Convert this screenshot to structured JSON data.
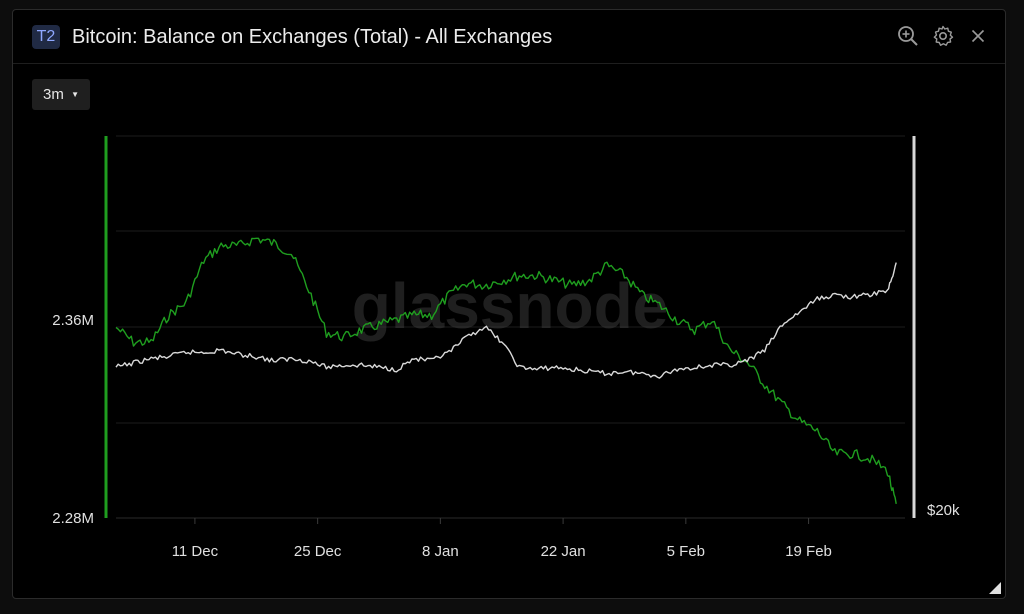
{
  "panel": {
    "badge": "T2",
    "title": "Bitcoin: Balance on Exchanges (Total) - All Exchanges",
    "timeframe": "3m",
    "watermark": "glassnode",
    "icons": [
      "zoom-in-icon",
      "gear-icon",
      "close-icon"
    ]
  },
  "chart_data": {
    "type": "line",
    "title": "Bitcoin: Balance on Exchanges (Total) - All Exchanges",
    "x_ticks": [
      "11 Dec",
      "25 Dec",
      "8 Jan",
      "22 Jan",
      "5 Feb",
      "19 Feb"
    ],
    "y_left_ticks": [
      "2.36M",
      "2.28M"
    ],
    "y_right_ticks": [
      "$20k"
    ],
    "x_range": [
      "2022-12-02",
      "2023-03-02"
    ],
    "y_left_range": [
      2.28,
      2.42
    ],
    "grid": true,
    "series": [
      {
        "color": "#1f9e1f",
        "axis": "left",
        "unit": "M BTC",
        "x": [
          "2022-12-02",
          "2022-12-04",
          "2022-12-06",
          "2022-12-08",
          "2022-12-10",
          "2022-12-12",
          "2022-12-14",
          "2022-12-16",
          "2022-12-18",
          "2022-12-20",
          "2022-12-22",
          "2022-12-24",
          "2022-12-26",
          "2022-12-28",
          "2022-12-30",
          "2023-01-01",
          "2023-01-03",
          "2023-01-05",
          "2023-01-07",
          "2023-01-09",
          "2023-01-11",
          "2023-01-13",
          "2023-01-15",
          "2023-01-17",
          "2023-01-19",
          "2023-01-21",
          "2023-01-23",
          "2023-01-25",
          "2023-01-27",
          "2023-01-29",
          "2023-01-31",
          "2023-02-02",
          "2023-02-04",
          "2023-02-06",
          "2023-02-08",
          "2023-02-10",
          "2023-02-12",
          "2023-02-14",
          "2023-02-16",
          "2023-02-18",
          "2023-02-20",
          "2023-02-22",
          "2023-02-24",
          "2023-02-26",
          "2023-02-28",
          "2023-03-01"
        ],
        "y": [
          2.357,
          2.351,
          2.351,
          2.362,
          2.367,
          2.384,
          2.39,
          2.39,
          2.393,
          2.391,
          2.387,
          2.372,
          2.355,
          2.353,
          2.356,
          2.358,
          2.36,
          2.362,
          2.362,
          2.37,
          2.375,
          2.374,
          2.376,
          2.378,
          2.378,
          2.376,
          2.374,
          2.376,
          2.382,
          2.378,
          2.37,
          2.366,
          2.36,
          2.356,
          2.36,
          2.348,
          2.343,
          2.334,
          2.326,
          2.319,
          2.315,
          2.306,
          2.306,
          2.304,
          2.299,
          2.285
        ]
      },
      {
        "color": "#d9d9d9",
        "axis": "right",
        "unit": "USD",
        "x": [
          "2022-12-02",
          "2022-12-04",
          "2022-12-06",
          "2022-12-08",
          "2022-12-10",
          "2022-12-12",
          "2022-12-14",
          "2022-12-16",
          "2022-12-18",
          "2022-12-20",
          "2022-12-22",
          "2022-12-24",
          "2022-12-26",
          "2022-12-28",
          "2022-12-30",
          "2023-01-01",
          "2023-01-03",
          "2023-01-05",
          "2023-01-07",
          "2023-01-09",
          "2023-01-11",
          "2023-01-13",
          "2023-01-15",
          "2023-01-17",
          "2023-01-19",
          "2023-01-21",
          "2023-01-23",
          "2023-01-25",
          "2023-01-27",
          "2023-01-29",
          "2023-01-31",
          "2023-02-02",
          "2023-02-04",
          "2023-02-06",
          "2023-02-08",
          "2023-02-10",
          "2023-02-12",
          "2023-02-14",
          "2023-02-16",
          "2023-02-18",
          "2023-02-20",
          "2023-02-22",
          "2023-02-24",
          "2023-02-26",
          "2023-02-28",
          "2023-03-01"
        ],
        "y": [
          16900,
          17000,
          17100,
          17150,
          17250,
          17250,
          17300,
          17200,
          17150,
          17050,
          17100,
          17050,
          16900,
          16950,
          16950,
          16900,
          16850,
          17100,
          17050,
          17250,
          17600,
          17850,
          17500,
          16900,
          16850,
          16900,
          16850,
          16800,
          16750,
          16800,
          16750,
          16700,
          16850,
          16900,
          16950,
          16950,
          17050,
          17300,
          17900,
          18200,
          18500,
          18600,
          18550,
          18600,
          18700,
          19300
        ]
      }
    ]
  }
}
